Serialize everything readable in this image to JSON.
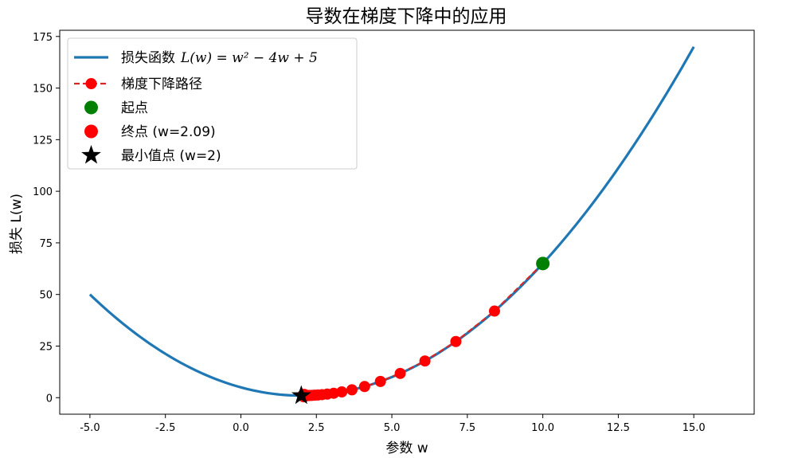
{
  "chart_data": {
    "type": "line",
    "title": "导数在梯度下降中的应用",
    "xlabel": "参数 w",
    "ylabel": "损失 L(w)",
    "xlim": [
      -6,
      17
    ],
    "ylim": [
      -8,
      178
    ],
    "xticks": [
      -5.0,
      -2.5,
      0.0,
      2.5,
      5.0,
      7.5,
      10.0,
      12.5,
      15.0
    ],
    "xtick_labels": [
      "-5.0",
      "-2.5",
      "0.0",
      "2.5",
      "5.0",
      "7.5",
      "10.0",
      "12.5",
      "15.0"
    ],
    "yticks": [
      0,
      25,
      50,
      75,
      100,
      125,
      150,
      175
    ],
    "ytick_labels": [
      "0",
      "25",
      "50",
      "75",
      "100",
      "125",
      "150",
      "175"
    ],
    "grid": false,
    "legend_position": "top-left",
    "loss_curve": {
      "name_prefix": "损失函数",
      "formula": "L(w) = w² − 4w + 5",
      "function": {
        "a": 1,
        "b": -4,
        "c": 5
      },
      "x_range": [
        -5,
        15
      ],
      "color": "#1f77b4"
    },
    "gd_path": {
      "name": "梯度下降路径",
      "color": "#ff0000",
      "line_color": "#d62728",
      "w": [
        10.0,
        8.4,
        7.12,
        6.096,
        5.277,
        4.621,
        4.097,
        3.678,
        3.342,
        3.074,
        2.859,
        2.687,
        2.55,
        2.44,
        2.352,
        2.281,
        2.225,
        2.18,
        2.144,
        2.115,
        2.092
      ],
      "L": [
        65.0,
        41.96,
        27.21,
        17.78,
        11.74,
        7.87,
        5.39,
        3.82,
        2.8,
        2.15,
        1.74,
        1.47,
        1.3,
        1.19,
        1.12,
        1.08,
        1.05,
        1.03,
        1.02,
        1.01,
        1.01
      ]
    },
    "start_point": {
      "name": "起点",
      "w": 10.0,
      "L": 65.0,
      "color": "#008000"
    },
    "end_point": {
      "name": "终点 (w=2.09)",
      "w": 2.09,
      "L": 1.01,
      "color": "#ff0000"
    },
    "min_point": {
      "name": "最小值点 (w=2)",
      "w": 2.0,
      "L": 1.0,
      "color": "#000000"
    }
  }
}
